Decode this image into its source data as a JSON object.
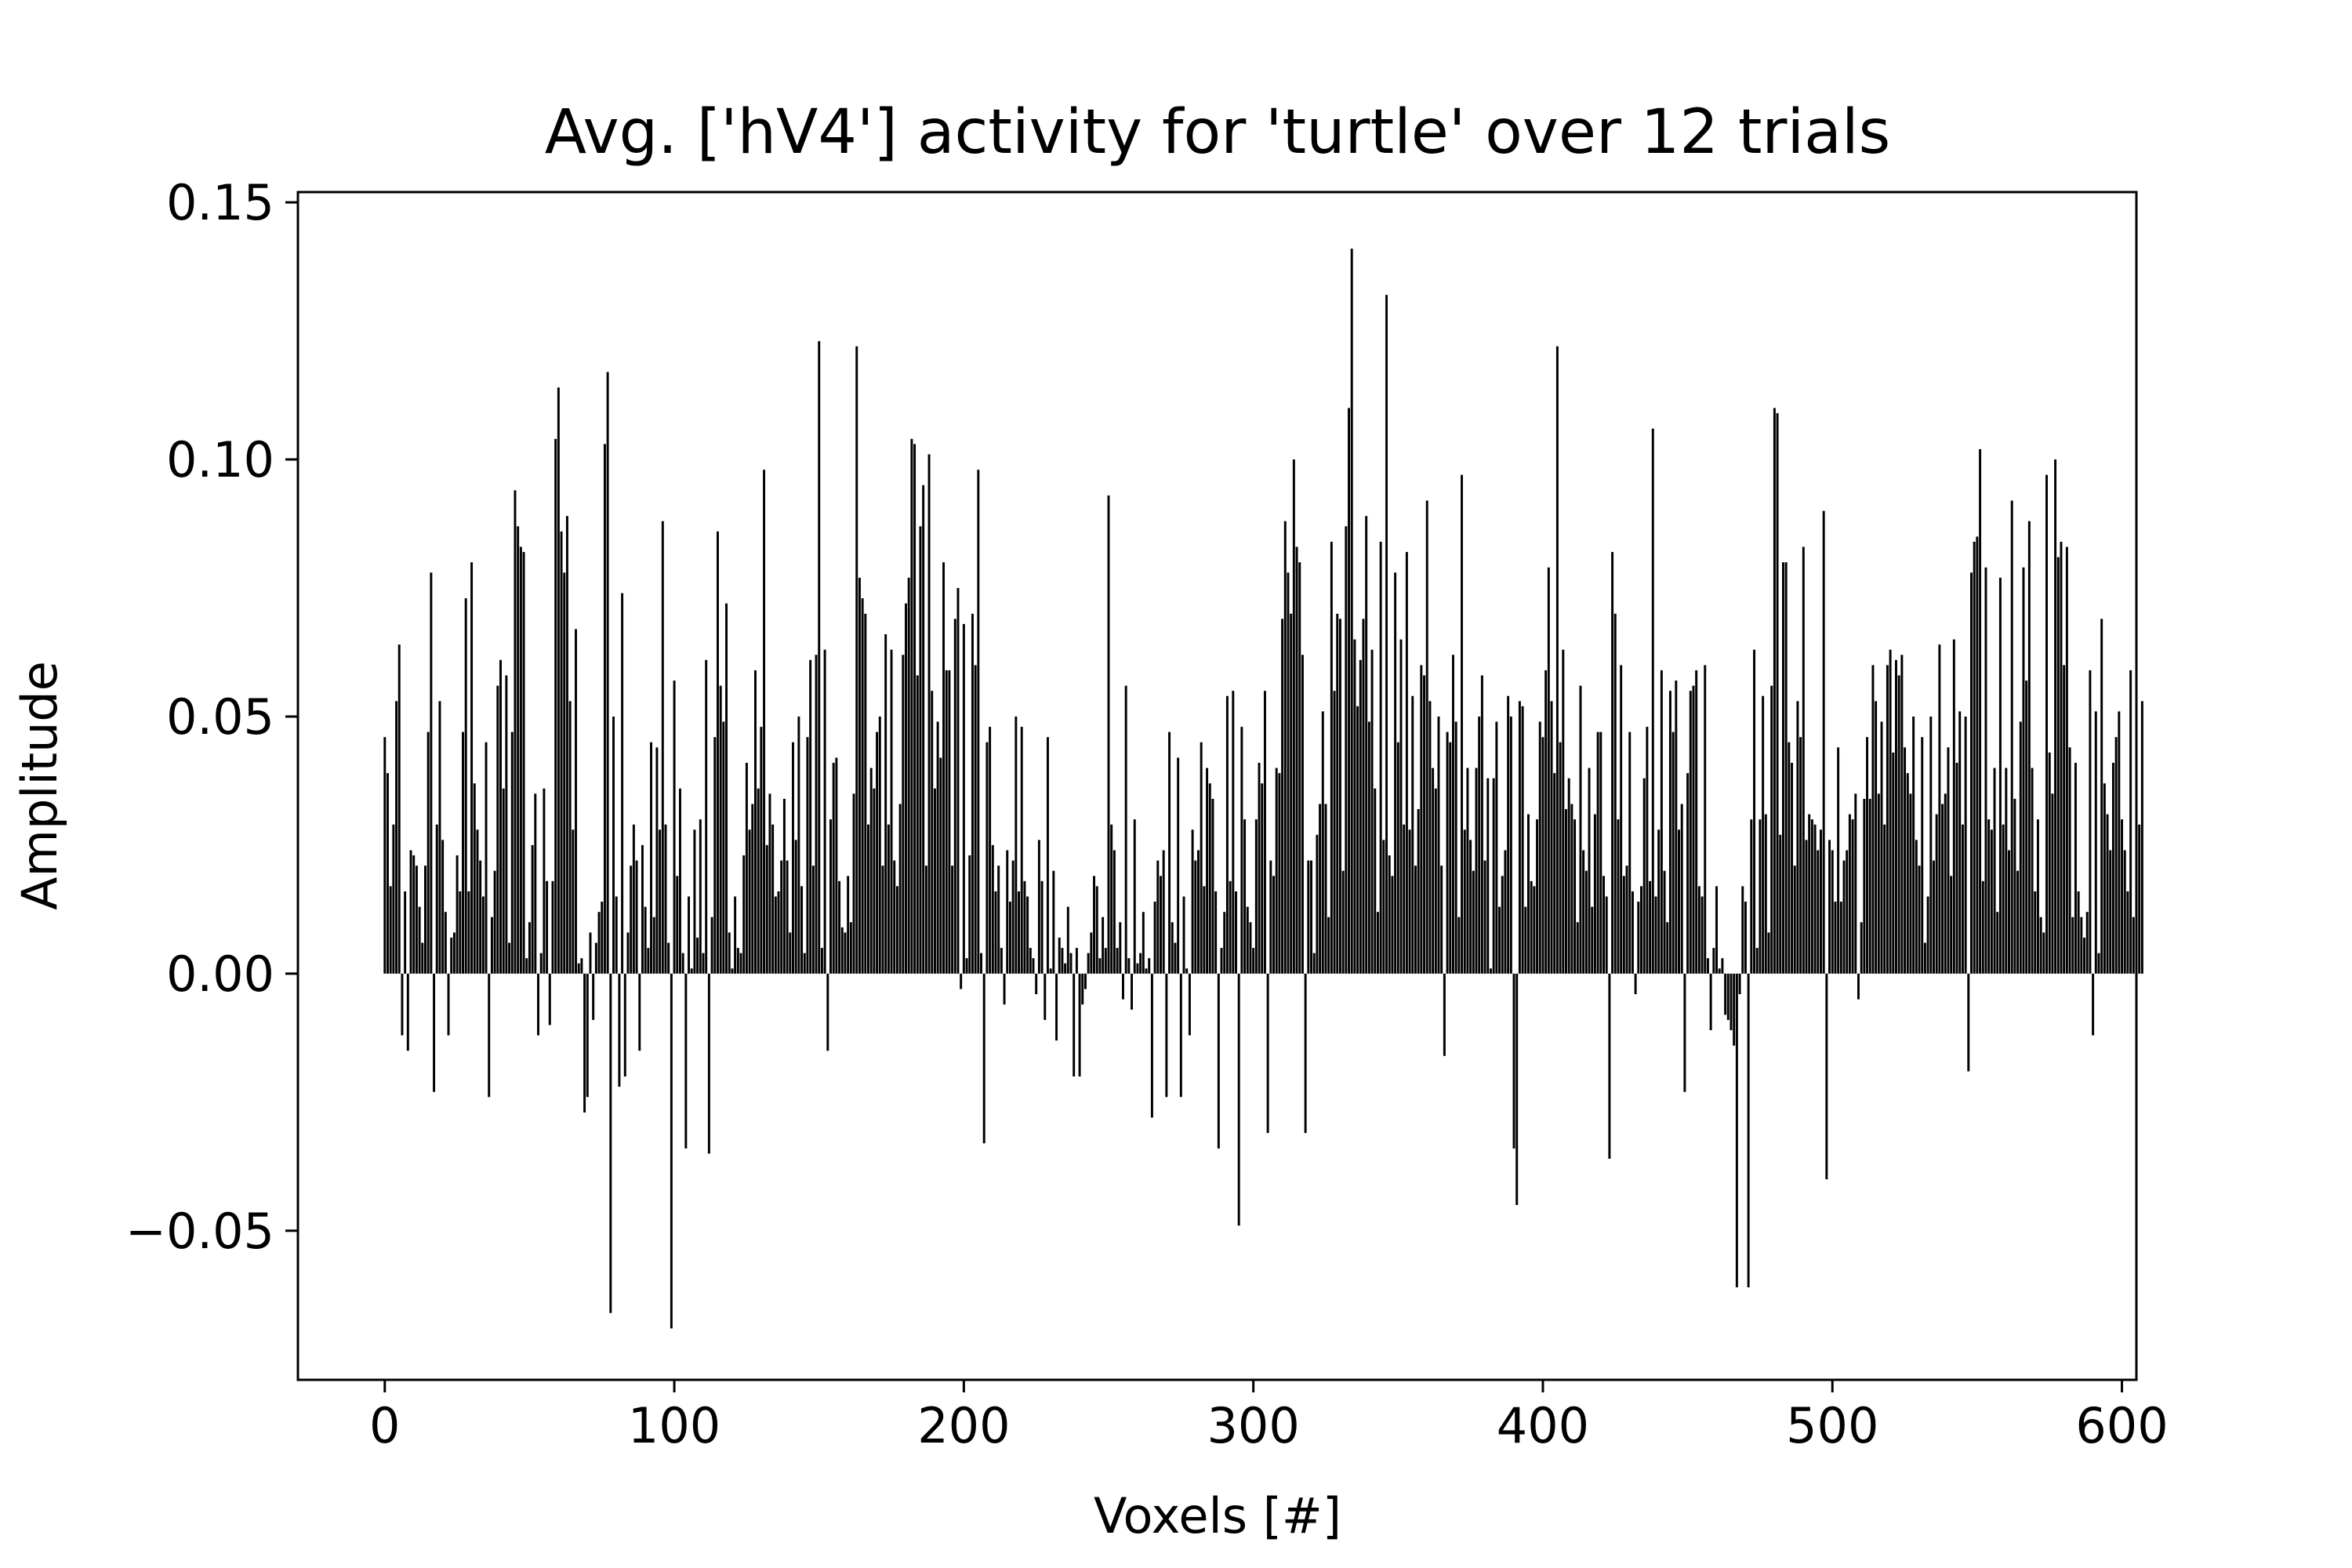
{
  "chart_data": {
    "type": "bar",
    "title": "Avg. ['hV4'] activity for 'turtle' over 12 trials",
    "xlabel": "Voxels [#]",
    "ylabel": "Amplitude",
    "xlim": [
      -30,
      605
    ],
    "ylim": [
      -0.079,
      0.152
    ],
    "xticks": [
      0,
      100,
      200,
      300,
      400,
      500,
      600
    ],
    "xtick_labels": [
      "0",
      "100",
      "200",
      "300",
      "400",
      "500",
      "600"
    ],
    "yticks": [
      -0.05,
      0.0,
      0.05,
      0.1,
      0.15
    ],
    "ytick_labels": [
      "−0.05",
      "0.00",
      "0.05",
      "0.10",
      "0.15"
    ],
    "grid": false,
    "bar_color": "#000000",
    "x_start": 0,
    "values": [
      0.046,
      0.039,
      0.017,
      0.029,
      0.053,
      0.064,
      -0.012,
      0.016,
      -0.015,
      0.024,
      0.023,
      0.021,
      0.013,
      0.006,
      0.021,
      0.047,
      0.078,
      -0.023,
      0.029,
      0.053,
      0.026,
      0.012,
      -0.012,
      0.007,
      0.008,
      0.023,
      0.016,
      0.047,
      0.073,
      0.016,
      0.08,
      0.037,
      0.028,
      0.022,
      0.015,
      0.045,
      -0.024,
      0.011,
      0.02,
      0.056,
      0.061,
      0.036,
      0.058,
      0.006,
      0.047,
      0.094,
      0.087,
      0.083,
      0.082,
      0.003,
      0.01,
      0.025,
      0.035,
      -0.012,
      0.004,
      0.036,
      0.018,
      -0.01,
      0.018,
      0.104,
      0.114,
      0.086,
      0.078,
      0.089,
      0.053,
      0.028,
      0.067,
      0.002,
      0.003,
      -0.027,
      -0.024,
      0.008,
      -0.009,
      0.006,
      0.012,
      0.014,
      0.103,
      0.117,
      -0.066,
      0.05,
      0.015,
      -0.022,
      0.074,
      -0.02,
      0.008,
      0.021,
      0.029,
      0.022,
      -0.015,
      0.025,
      0.013,
      0.005,
      0.045,
      0.011,
      0.044,
      0.028,
      0.088,
      0.029,
      0.006,
      -0.069,
      0.057,
      0.019,
      0.036,
      0.004,
      -0.034,
      0.015,
      0.001,
      0.028,
      0.007,
      0.03,
      0.004,
      0.061,
      -0.035,
      0.011,
      0.046,
      0.086,
      0.056,
      0.049,
      0.072,
      0.008,
      0.001,
      0.015,
      0.005,
      0.004,
      0.023,
      0.041,
      0.028,
      0.033,
      0.059,
      0.036,
      0.048,
      0.098,
      0.025,
      0.035,
      0.029,
      0.015,
      0.016,
      0.022,
      0.034,
      0.022,
      0.008,
      0.045,
      0.026,
      0.05,
      0.017,
      0.004,
      0.046,
      0.061,
      0.021,
      0.062,
      0.123,
      0.005,
      0.063,
      -0.015,
      0.03,
      0.041,
      0.042,
      0.018,
      0.009,
      0.008,
      0.019,
      0.01,
      0.035,
      0.122,
      0.077,
      0.073,
      0.07,
      0.029,
      0.04,
      0.036,
      0.047,
      0.05,
      0.021,
      0.066,
      0.029,
      0.063,
      0.022,
      0.017,
      0.033,
      0.062,
      0.072,
      0.077,
      0.104,
      0.103,
      0.058,
      0.087,
      0.095,
      0.021,
      0.101,
      0.055,
      0.036,
      0.049,
      0.042,
      0.08,
      0.059,
      0.059,
      0.021,
      0.069,
      0.075,
      -0.003,
      0.068,
      0.003,
      0.023,
      0.07,
      0.06,
      0.098,
      0.004,
      -0.033,
      0.045,
      0.048,
      0.025,
      0.016,
      0.021,
      0.005,
      -0.006,
      0.024,
      0.014,
      0.022,
      0.05,
      0.016,
      0.048,
      0.018,
      0.015,
      0.005,
      0.003,
      -0.004,
      0.026,
      0.018,
      -0.009,
      0.046,
      0.001,
      0.02,
      -0.013,
      0.007,
      0.005,
      0.002,
      0.013,
      0.004,
      -0.02,
      0.005,
      -0.02,
      -0.006,
      -0.003,
      0.004,
      0.008,
      0.019,
      0.017,
      0.003,
      0.011,
      0.005,
      0.093,
      0.029,
      0.024,
      0.005,
      0.01,
      -0.005,
      0.056,
      0.003,
      -0.007,
      0.03,
      0.002,
      0.004,
      0.012,
      0.001,
      0.003,
      -0.028,
      0.014,
      0.022,
      0.019,
      0.024,
      -0.024,
      0.047,
      0.01,
      0.006,
      0.042,
      -0.024,
      0.015,
      0.001,
      -0.012,
      0.028,
      0.022,
      0.024,
      0.045,
      0.017,
      0.04,
      0.037,
      0.034,
      0.016,
      -0.034,
      0.005,
      0.012,
      0.054,
      0.018,
      0.055,
      0.016,
      -0.049,
      0.048,
      0.03,
      0.013,
      0.01,
      0.005,
      0.03,
      0.041,
      0.037,
      0.055,
      -0.031,
      0.022,
      0.019,
      0.04,
      0.039,
      0.069,
      0.088,
      0.078,
      0.07,
      0.1,
      0.083,
      0.08,
      0.062,
      -0.031,
      0.022,
      0.022,
      0.004,
      0.027,
      0.033,
      0.051,
      0.033,
      0.011,
      0.084,
      0.055,
      0.07,
      0.069,
      0.02,
      0.087,
      0.11,
      0.141,
      0.065,
      0.052,
      0.061,
      0.069,
      0.089,
      0.049,
      0.063,
      0.036,
      0.012,
      0.084,
      0.026,
      0.132,
      0.023,
      0.019,
      0.078,
      0.045,
      0.065,
      0.029,
      0.082,
      0.028,
      0.054,
      0.021,
      0.032,
      0.06,
      0.058,
      0.092,
      0.053,
      0.04,
      0.036,
      0.05,
      0.021,
      -0.016,
      0.047,
      0.045,
      0.062,
      0.049,
      0.011,
      0.097,
      0.028,
      0.04,
      0.026,
      0.02,
      0.04,
      0.05,
      0.058,
      0.022,
      0.038,
      0.001,
      0.038,
      0.049,
      0.013,
      0.019,
      0.024,
      0.054,
      0.05,
      -0.034,
      -0.045,
      0.053,
      0.052,
      0.013,
      0.031,
      0.018,
      0.017,
      0.03,
      0.049,
      0.046,
      0.059,
      0.079,
      0.053,
      0.039,
      0.122,
      0.045,
      0.063,
      0.032,
      0.038,
      0.033,
      0.03,
      0.01,
      0.056,
      0.024,
      0.02,
      0.04,
      0.013,
      0.031,
      0.047,
      0.047,
      0.019,
      0.015,
      -0.036,
      0.082,
      0.07,
      0.03,
      0.06,
      0.019,
      0.021,
      0.047,
      0.016,
      -0.004,
      0.014,
      0.017,
      0.038,
      0.048,
      0.018,
      0.106,
      0.015,
      0.028,
      0.059,
      0.02,
      0.01,
      0.055,
      0.047,
      0.057,
      0.028,
      0.033,
      -0.023,
      0.039,
      0.055,
      0.056,
      0.059,
      0.017,
      0.015,
      0.06,
      0.003,
      -0.011,
      0.005,
      0.017,
      0.001,
      0.003,
      -0.008,
      -0.009,
      -0.011,
      -0.014,
      -0.061,
      -0.004,
      0.017,
      0.014,
      -0.061,
      0.03,
      0.063,
      0.005,
      0.03,
      0.054,
      0.031,
      0.008,
      0.056,
      0.11,
      0.109,
      0.027,
      0.08,
      0.08,
      0.045,
      0.041,
      0.021,
      0.053,
      0.046,
      0.083,
      0.026,
      0.031,
      0.03,
      0.029,
      0.024,
      0.028,
      0.09,
      -0.04,
      0.026,
      0.024,
      0.014,
      0.044,
      0.014,
      0.022,
      0.024,
      0.031,
      0.03,
      0.035,
      -0.005,
      0.01,
      0.034,
      0.046,
      0.034,
      0.06,
      0.053,
      0.035,
      0.049,
      0.029,
      0.06,
      0.063,
      0.043,
      0.061,
      0.058,
      0.062,
      0.044,
      0.039,
      0.035,
      0.05,
      0.026,
      0.021,
      0.046,
      0.006,
      0.015,
      0.05,
      0.022,
      0.031,
      0.064,
      0.033,
      0.035,
      0.044,
      0.019,
      0.065,
      0.041,
      0.051,
      0.029,
      0.05,
      -0.019,
      0.078,
      0.084,
      0.085,
      0.102,
      0.018,
      0.079,
      0.03,
      0.028,
      0.04,
      0.012,
      0.077,
      0.029,
      0.04,
      0.024,
      0.092,
      0.034,
      0.02,
      0.049,
      0.079,
      0.057,
      0.088,
      0.04,
      0.016,
      0.03,
      0.011,
      0.008,
      0.097,
      0.043,
      0.035,
      0.1,
      0.081,
      0.084,
      0.06,
      0.083,
      0.044,
      0.011,
      0.041,
      0.016,
      0.011,
      0.007,
      0.012,
      0.059,
      -0.012,
      0.051,
      0.004,
      0.069,
      0.037,
      0.031,
      0.024,
      0.041,
      0.046,
      0.051,
      0.03,
      0.024,
      0.016,
      0.059,
      0.011,
      -0.039,
      0.029,
      0.053
    ]
  }
}
